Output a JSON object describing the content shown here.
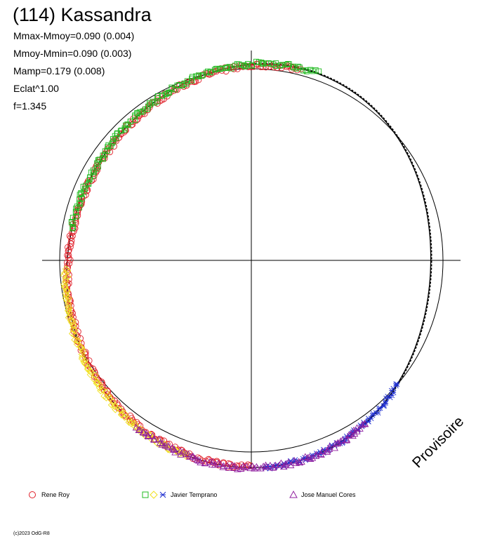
{
  "title": "(114) Kassandra",
  "stats": [
    "Mmax-Mmoy=0.090 (0.004)",
    "Mmoy-Mmin=0.090 (0.003)",
    "Mamp=0.179 (0.008)",
    "Eclat^1.00",
    "f=1.345"
  ],
  "watermark": "Provisoire",
  "copyright": "(c)2023 OdG-R8",
  "legend": [
    {
      "name": "Rene Roy",
      "marker": "circle",
      "color": "#e0202a"
    },
    {
      "name": "Javier Temprano",
      "marker": "square-diamond-star",
      "colors": [
        "#22bb22",
        "#f0e020",
        "#2030d0"
      ]
    },
    {
      "name": "Jose Manuel Cores",
      "marker": "triangle",
      "color": "#9020a0"
    }
  ],
  "chart_data": {
    "type": "scatter",
    "coordinate_system": "polar",
    "description_of_axes": "angle = rotational phase (0 at top, clockwise), radius = relative magnitude",
    "reference_circle": true,
    "crosshair": true,
    "series": [
      {
        "name": "Rene Roy",
        "marker": "circle",
        "color": "#e0202a",
        "phase_range_deg": [
          [
            -95,
            15
          ],
          [
            180,
            265
          ]
        ],
        "offset": [
          -0.005,
          0.0
        ]
      },
      {
        "name": "Javier Temprano (green)",
        "marker": "square",
        "color": "#22bb22",
        "phase_range_deg": [
          [
            -80,
            20
          ]
        ],
        "offset": [
          0.004,
          0.0
        ]
      },
      {
        "name": "Javier Temprano (yellow)",
        "marker": "diamond",
        "color": "#f0e020",
        "phase_range_deg": [
          [
            198,
            268
          ]
        ],
        "offset": [
          0.006,
          0.0
        ]
      },
      {
        "name": "Javier Temprano (blue)",
        "marker": "star",
        "color": "#2030d0",
        "phase_range_deg": [
          [
            130,
            177
          ]
        ],
        "offset": [
          0.0,
          0.0
        ]
      },
      {
        "name": "Jose Manuel Cores",
        "marker": "triangle",
        "color": "#9020a0",
        "phase_range_deg": [
          [
            145,
            215
          ]
        ],
        "offset": [
          0.002,
          0.0
        ]
      }
    ],
    "mean_curve": {
      "color": "#000000",
      "dashed_segment_deg": [
        0,
        160
      ]
    },
    "amplitude": 0.179,
    "period_factor": 1.345
  }
}
